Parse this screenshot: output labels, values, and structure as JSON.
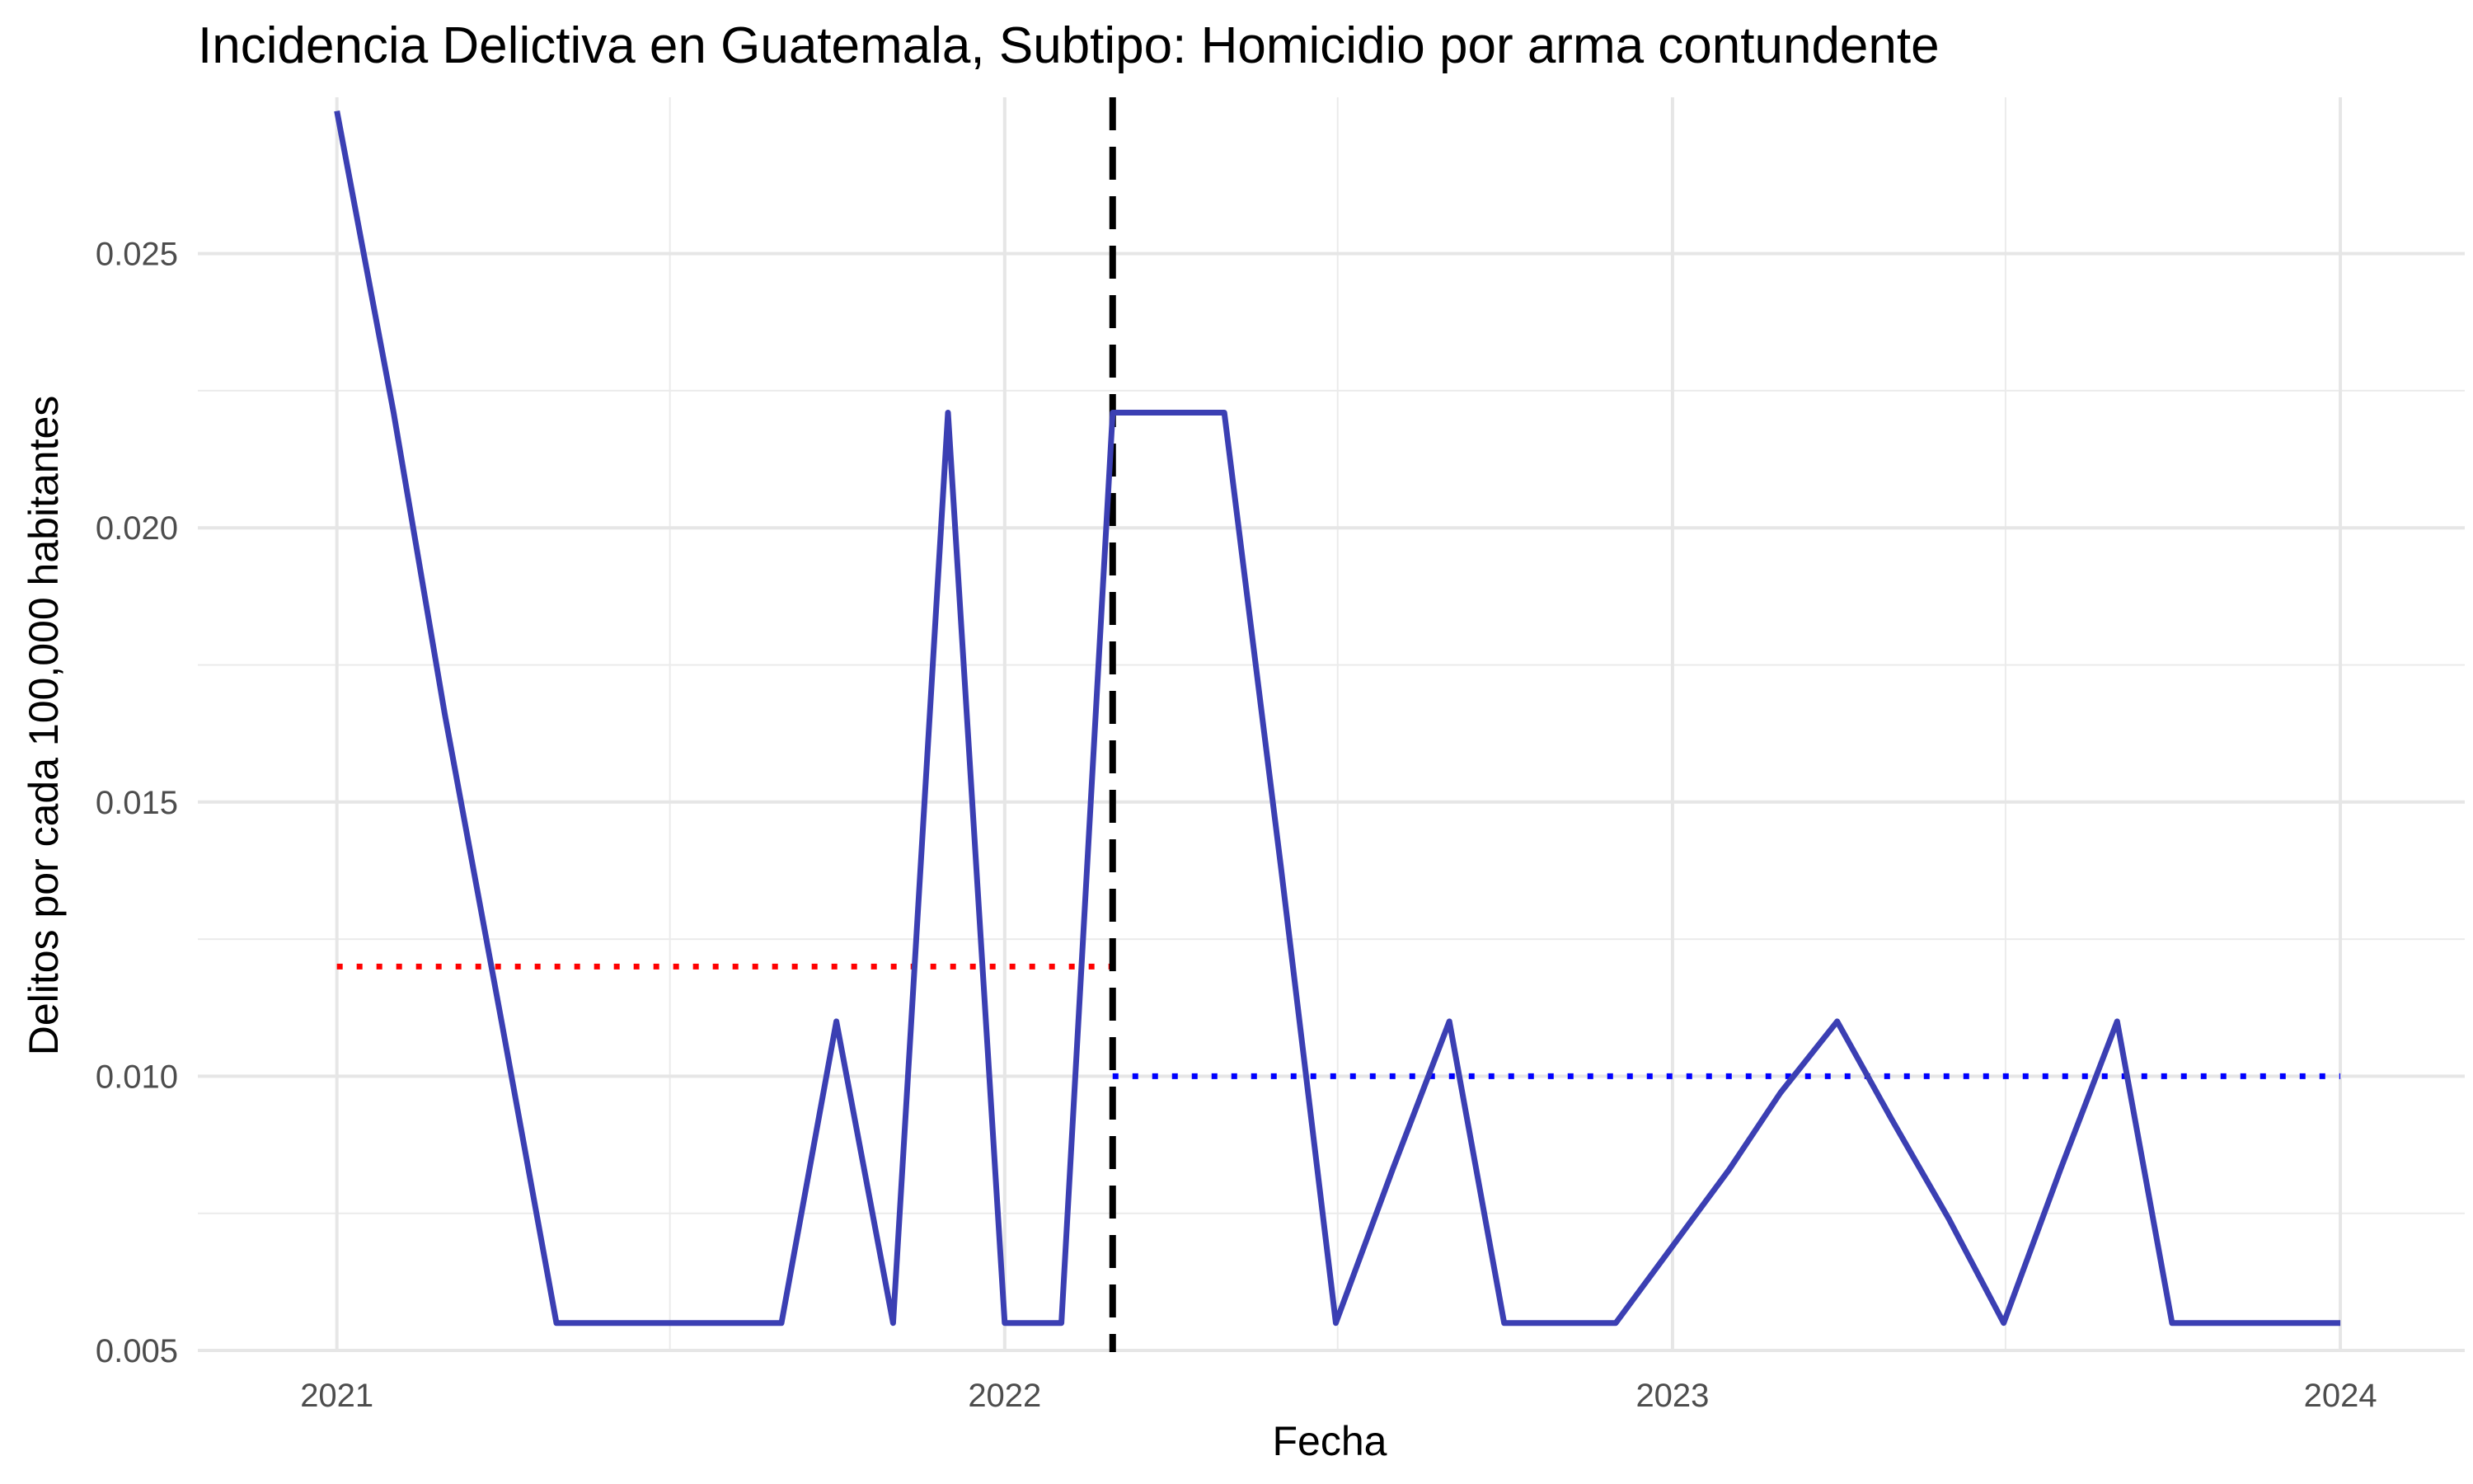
{
  "chart_data": {
    "type": "line",
    "title": "Incidencia Delictiva en Guatemala, Subtipo: Homicidio por arma contundente",
    "xlabel": "Fecha",
    "ylabel": "Delitos por cada 100,000 habitantes",
    "x_axis_type": "date",
    "xlim": [
      "2020-10-17",
      "2024-03-09"
    ],
    "ylim": [
      0.00497,
      0.02785
    ],
    "x_ticks": [
      {
        "date": "2021-01-01",
        "label": "2021"
      },
      {
        "date": "2022-01-01",
        "label": "2022"
      },
      {
        "date": "2023-01-01",
        "label": "2023"
      },
      {
        "date": "2024-01-01",
        "label": "2024"
      }
    ],
    "x_minor_ticks": [
      "2021-07-02",
      "2022-07-02",
      "2023-07-02"
    ],
    "y_ticks": [
      0.005,
      0.01,
      0.015,
      0.02,
      0.025
    ],
    "y_minor_ticks": [
      0.0075,
      0.0125,
      0.0175,
      0.0225
    ],
    "grid": true,
    "legend": "none",
    "series": [
      {
        "color": "#3b3fb3",
        "points": [
          {
            "x": "2021-01-01",
            "y": 0.0276
          },
          {
            "x": "2021-02-01",
            "y": 0.0221
          },
          {
            "x": "2021-03-01",
            "y": 0.0166
          },
          {
            "x": "2021-04-01",
            "y": 0.011
          },
          {
            "x": "2021-05-01",
            "y": 0.0055
          },
          {
            "x": "2021-06-01",
            "y": 0.0055
          },
          {
            "x": "2021-07-01",
            "y": 0.0055
          },
          {
            "x": "2021-08-01",
            "y": 0.0055
          },
          {
            "x": "2021-09-01",
            "y": 0.0055
          },
          {
            "x": "2021-10-01",
            "y": 0.011
          },
          {
            "x": "2021-11-01",
            "y": 0.0055
          },
          {
            "x": "2021-12-01",
            "y": 0.0221
          },
          {
            "x": "2022-01-01",
            "y": 0.0055
          },
          {
            "x": "2022-02-01",
            "y": 0.0055
          },
          {
            "x": "2022-03-01",
            "y": 0.0221
          },
          {
            "x": "2022-04-01",
            "y": 0.0221
          },
          {
            "x": "2022-05-01",
            "y": 0.0221
          },
          {
            "x": "2022-06-01",
            "y": 0.0138
          },
          {
            "x": "2022-07-01",
            "y": 0.0055
          },
          {
            "x": "2022-08-01",
            "y": 0.0083
          },
          {
            "x": "2022-09-01",
            "y": 0.011
          },
          {
            "x": "2022-10-01",
            "y": 0.0055
          },
          {
            "x": "2022-11-01",
            "y": 0.0055
          },
          {
            "x": "2022-12-01",
            "y": 0.0055
          },
          {
            "x": "2023-01-01",
            "y": 0.0069
          },
          {
            "x": "2023-02-01",
            "y": 0.0083
          },
          {
            "x": "2023-03-01",
            "y": 0.0097
          },
          {
            "x": "2023-04-01",
            "y": 0.011
          },
          {
            "x": "2023-05-01",
            "y": 0.0092
          },
          {
            "x": "2023-06-01",
            "y": 0.0074
          },
          {
            "x": "2023-07-01",
            "y": 0.0055
          },
          {
            "x": "2023-08-01",
            "y": 0.0083
          },
          {
            "x": "2023-09-01",
            "y": 0.011
          },
          {
            "x": "2023-10-01",
            "y": 0.0055
          },
          {
            "x": "2023-11-01",
            "y": 0.0055
          },
          {
            "x": "2023-12-01",
            "y": 0.0055
          },
          {
            "x": "2024-01-01",
            "y": 0.0055
          }
        ]
      }
    ],
    "annotations": [
      {
        "type": "vline",
        "x": "2022-03-01",
        "style": "dashed",
        "color": "#000000"
      },
      {
        "type": "hsegment",
        "y": 0.012,
        "x_start": "2021-01-01",
        "x_end": "2022-03-01",
        "style": "dotted",
        "color": "#ff0000"
      },
      {
        "type": "hsegment",
        "y": 0.01,
        "x_start": "2022-03-01",
        "x_end": "2024-01-01",
        "style": "dotted",
        "color": "#0000ff"
      }
    ]
  }
}
